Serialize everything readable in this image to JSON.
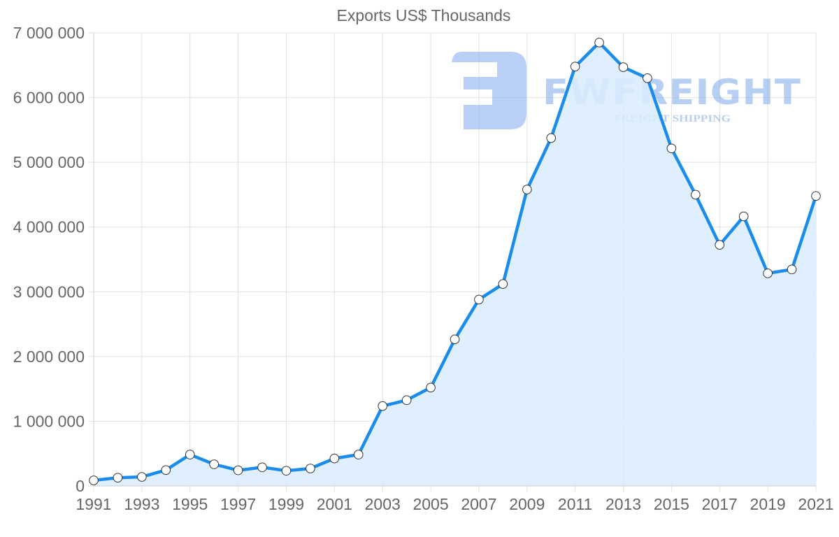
{
  "chart_data": {
    "type": "area",
    "title": "Exports US$ Thousands",
    "xlabel": "",
    "ylabel": "",
    "x": [
      1991,
      1992,
      1993,
      1994,
      1995,
      1996,
      1997,
      1998,
      1999,
      2000,
      2001,
      2002,
      2003,
      2004,
      2005,
      2006,
      2007,
      2008,
      2009,
      2010,
      2011,
      2012,
      2013,
      2014,
      2015,
      2016,
      2017,
      2018,
      2019,
      2020,
      2021
    ],
    "series": [
      {
        "name": "Exports US$ Thousands",
        "values": [
          86000,
          128000,
          140000,
          245000,
          485000,
          335000,
          242000,
          288000,
          235000,
          270000,
          425000,
          485000,
          1235000,
          1325000,
          1520000,
          2265000,
          2880000,
          3120000,
          4580000,
          5375000,
          6480000,
          6850000,
          6470000,
          6300000,
          5215000,
          4500000,
          3725000,
          4165000,
          3285000,
          3345000,
          4480000
        ]
      }
    ],
    "x_tick_labels": [
      "1991",
      "1993",
      "1995",
      "1997",
      "1999",
      "2001",
      "2003",
      "2005",
      "2007",
      "2009",
      "2011",
      "2013",
      "2015",
      "2017",
      "2019",
      "2021"
    ],
    "y_tick_labels": [
      "0",
      "1 000 000",
      "2 000 000",
      "3 000 000",
      "4 000 000",
      "5 000 000",
      "6 000 000",
      "7 000 000"
    ],
    "ylim": [
      0,
      7000000
    ],
    "xlim": [
      1991,
      2021
    ],
    "grid": true,
    "legend": "none",
    "colors": {
      "line": "#1a8ceb",
      "fill": "#d9ecfd",
      "marker_fill": "#ffffff",
      "marker_stroke": "#333333",
      "grid": "#e2e2e2",
      "text": "#666666"
    }
  },
  "watermark": {
    "brand": "FWFREIGHT",
    "tagline": "FREIGHT SHIPPING",
    "logo_icon": "fwfreight-logo-icon",
    "color": "#7fa8ec"
  }
}
